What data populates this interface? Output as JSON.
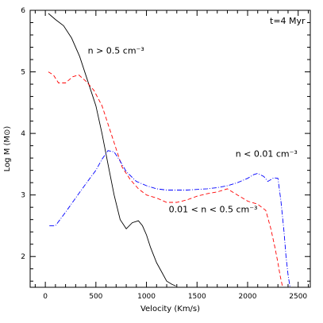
{
  "chart_data": {
    "type": "line",
    "title": "",
    "xlabel": "Velocity (Km/s)",
    "ylabel": "Log M (M⊙)",
    "xlim": [
      -150,
      2620
    ],
    "ylim": [
      1.5,
      6
    ],
    "xticks": [
      0,
      500,
      1000,
      1500,
      2000,
      2500
    ],
    "yticks": [
      2,
      3,
      4,
      5,
      6
    ],
    "grid": false,
    "legend": "none",
    "series": [
      {
        "color": "#000000",
        "dash": "solid",
        "x": [
          30,
          100,
          180,
          260,
          340,
          420,
          500,
          560,
          620,
          680,
          740,
          800,
          860,
          920,
          960,
          1000,
          1040,
          1100,
          1150,
          1200,
          1250,
          1290
        ],
        "y": [
          5.95,
          5.85,
          5.75,
          5.55,
          5.25,
          4.85,
          4.45,
          4.0,
          3.5,
          3.0,
          2.6,
          2.45,
          2.55,
          2.58,
          2.5,
          2.35,
          2.15,
          1.9,
          1.75,
          1.6,
          1.55,
          1.52
        ]
      },
      {
        "color": "#ff0000",
        "dash": "dashed",
        "x": [
          30,
          80,
          130,
          200,
          270,
          330,
          400,
          480,
          560,
          640,
          700,
          760,
          840,
          920,
          1000,
          1100,
          1200,
          1300,
          1400,
          1500,
          1600,
          1700,
          1800,
          1900,
          2000,
          2100,
          2180,
          2230,
          2270,
          2300,
          2320,
          2340,
          2350
        ],
        "y": [
          5.0,
          4.95,
          4.82,
          4.82,
          4.92,
          4.95,
          4.85,
          4.7,
          4.45,
          4.05,
          3.75,
          3.45,
          3.25,
          3.1,
          3.0,
          2.95,
          2.88,
          2.88,
          2.92,
          2.98,
          3.02,
          3.05,
          3.1,
          3.0,
          2.9,
          2.85,
          2.75,
          2.45,
          2.15,
          1.9,
          1.7,
          1.55,
          1.5
        ]
      },
      {
        "color": "#0000ff",
        "dash": "dashdot",
        "x": [
          40,
          100,
          200,
          300,
          400,
          500,
          560,
          620,
          680,
          740,
          800,
          900,
          1000,
          1100,
          1200,
          1300,
          1400,
          1500,
          1600,
          1700,
          1800,
          1900,
          2000,
          2060,
          2100,
          2160,
          2200,
          2260,
          2300,
          2330,
          2360,
          2380,
          2400,
          2420
        ],
        "y": [
          2.5,
          2.5,
          2.72,
          2.95,
          3.18,
          3.4,
          3.58,
          3.72,
          3.7,
          3.55,
          3.38,
          3.22,
          3.15,
          3.1,
          3.08,
          3.08,
          3.08,
          3.09,
          3.1,
          3.12,
          3.15,
          3.2,
          3.27,
          3.33,
          3.35,
          3.3,
          3.22,
          3.28,
          3.27,
          2.9,
          2.4,
          2.0,
          1.7,
          1.5
        ]
      }
    ],
    "annotations": [
      {
        "text": "t=4 Myr",
        "x": 2220,
        "y": 5.78
      },
      {
        "text": "n > 0.5 cm⁻³",
        "x": 420,
        "y": 5.3
      },
      {
        "text": "n < 0.01 cm⁻³",
        "x": 1880,
        "y": 3.62
      },
      {
        "text": "0.01 < n < 0.5 cm⁻³",
        "x": 1220,
        "y": 2.72
      }
    ]
  }
}
